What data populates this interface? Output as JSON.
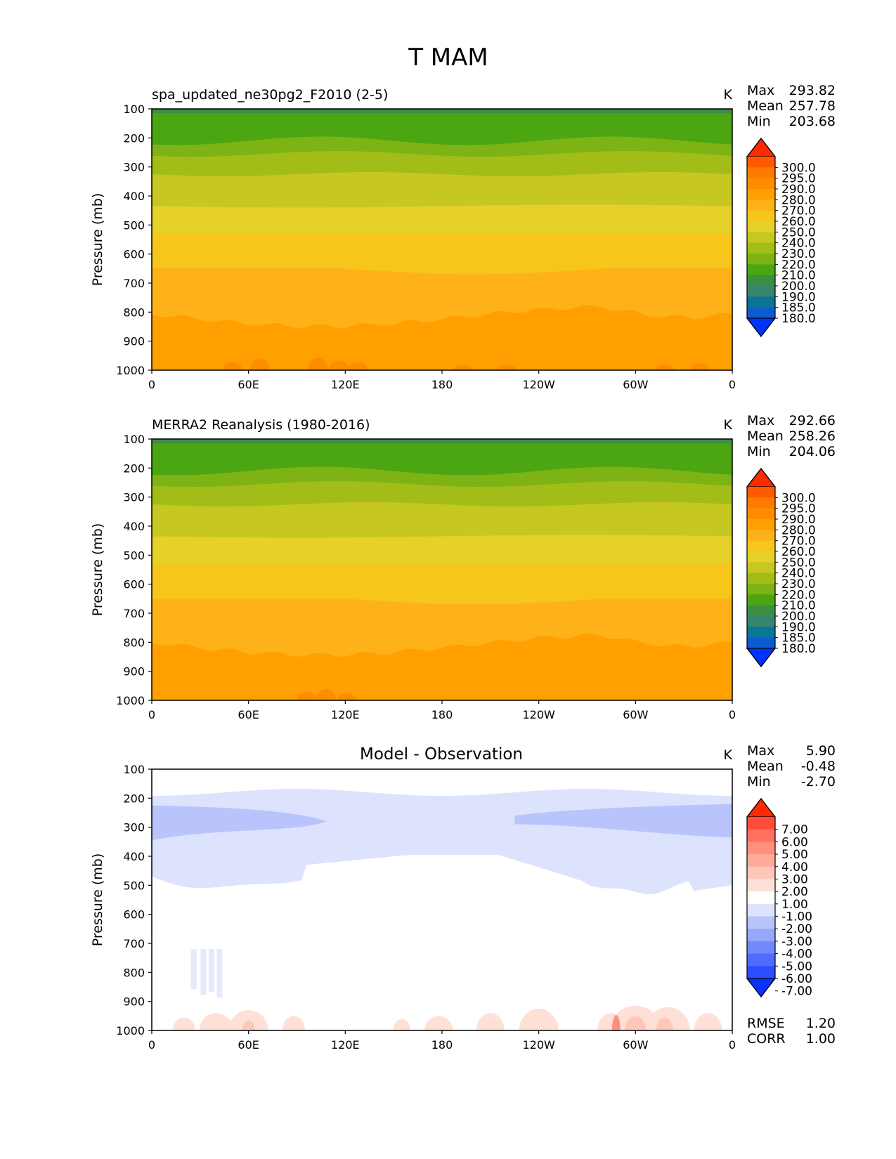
{
  "figure": {
    "title": "T MAM"
  },
  "x_ticks": [
    "0",
    "60E",
    "120E",
    "180",
    "120W",
    "60W",
    "0"
  ],
  "y_ticks": [
    "100",
    "200",
    "300",
    "400",
    "500",
    "600",
    "700",
    "800",
    "900",
    "1000"
  ],
  "ylabel": "Pressure (mb)",
  "units": "K",
  "stat_labels": {
    "max": "Max",
    "mean": "Mean",
    "min": "Min",
    "rmse": "RMSE",
    "corr": "CORR"
  },
  "colorbars": {
    "temperature": {
      "labels": [
        "300.0",
        "295.0",
        "290.0",
        "280.0",
        "270.0",
        "260.0",
        "250.0",
        "240.0",
        "230.0",
        "220.0",
        "210.0",
        "200.0",
        "190.0",
        "185.0",
        "180.0"
      ],
      "colors": [
        "#ff2a00",
        "#ff5a00",
        "#ff7a00",
        "#ff8c00",
        "#ffa000",
        "#ffb11a",
        "#f6c61b",
        "#e6d02a",
        "#c7c722",
        "#a3bd18",
        "#7db314",
        "#4ba611",
        "#3c8e44",
        "#36856f",
        "#0b7597",
        "#0c5cd1",
        "#0033ff"
      ],
      "extend_high": "#ff2a00",
      "extend_low": "#0033ff"
    },
    "difference": {
      "labels": [
        "7.00",
        "6.00",
        "5.00",
        "4.00",
        "3.00",
        "2.00",
        "1.00",
        "-1.00",
        "-2.00",
        "-3.00",
        "-4.00",
        "-5.00",
        "-6.00",
        "-7.00"
      ],
      "colors": [
        "#ff2a00",
        "#ff4d3a",
        "#ff705e",
        "#ff8f7d",
        "#ffaa9b",
        "#ffc6ba",
        "#ffe0d7",
        "#ffffff",
        "#dde3fd",
        "#b8c4fb",
        "#95a8fb",
        "#7289fc",
        "#4e6cfd",
        "#2b4dfe",
        "#0833ff"
      ],
      "extend_high": "#ff2a00",
      "extend_low": "#0833ff"
    }
  },
  "chart_data": [
    {
      "type": "contour",
      "title": "spa_updated_ne30pg2_F2010 (2-5)",
      "units": "K",
      "ylabel": "Pressure (mb)",
      "x_range": [
        0,
        360
      ],
      "y_range": [
        1000,
        100
      ],
      "stats": {
        "max": "293.82",
        "mean": "257.78",
        "min": "203.68"
      },
      "contour_levels": [
        180,
        185,
        190,
        200,
        210,
        220,
        230,
        240,
        250,
        260,
        270,
        280,
        290,
        295,
        300
      ],
      "zonal_profile_pressure": [
        100,
        200,
        300,
        400,
        500,
        600,
        700,
        800,
        900,
        1000
      ],
      "zonal_profile_temperature": [
        210,
        218,
        232,
        246,
        257,
        265,
        272,
        281,
        288,
        292
      ]
    },
    {
      "type": "contour",
      "title": "MERRA2 Reanalysis (1980-2016)",
      "units": "K",
      "ylabel": "Pressure (mb)",
      "x_range": [
        0,
        360
      ],
      "y_range": [
        1000,
        100
      ],
      "stats": {
        "max": "292.66",
        "mean": "258.26",
        "min": "204.06"
      },
      "contour_levels": [
        180,
        185,
        190,
        200,
        210,
        220,
        230,
        240,
        250,
        260,
        270,
        280,
        290,
        295,
        300
      ],
      "zonal_profile_pressure": [
        100,
        200,
        300,
        400,
        500,
        600,
        700,
        800,
        900,
        1000
      ],
      "zonal_profile_temperature": [
        211,
        219,
        233,
        247,
        258,
        266,
        273,
        282,
        288,
        291
      ]
    },
    {
      "type": "contour",
      "title": "Model - Observation",
      "units": "K",
      "ylabel": "Pressure (mb)",
      "x_range": [
        0,
        360
      ],
      "y_range": [
        1000,
        100
      ],
      "stats": {
        "max": "5.90",
        "mean": "-0.48",
        "min": "-2.70",
        "rmse": "1.20",
        "corr": "1.00"
      },
      "contour_levels": [
        -7,
        -6,
        -5,
        -4,
        -3,
        -2,
        -1,
        1,
        2,
        3,
        4,
        5,
        6,
        7
      ]
    }
  ]
}
